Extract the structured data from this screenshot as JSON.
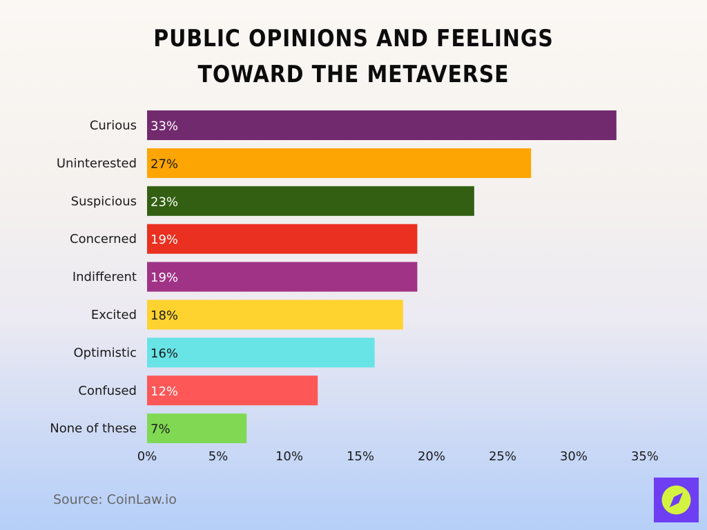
{
  "chart_data": {
    "type": "bar",
    "orientation": "horizontal",
    "title": "Public Opinions and Feelings Toward the Metaverse",
    "categories": [
      "Curious",
      "Uninterested",
      "Suspicious",
      "Concerned",
      "Indifferent",
      "Excited",
      "Optimistic",
      "Confused",
      "None of these"
    ],
    "values": [
      33,
      27,
      23,
      19,
      19,
      18,
      16,
      12,
      7
    ],
    "data_labels": [
      "33%",
      "27%",
      "23%",
      "19%",
      "19%",
      "18%",
      "16%",
      "12%",
      "7%"
    ],
    "colors": [
      "#722a6e",
      "#fda503",
      "#325f12",
      "#ea3020",
      "#a03386",
      "#fed22f",
      "#68e3e6",
      "#fd5757",
      "#80d853"
    ],
    "label_colors": [
      "#ffffff",
      "#1a1a1a",
      "#ffffff",
      "#ffffff",
      "#ffffff",
      "#1a1a1a",
      "#1a1a1a",
      "#ffffff",
      "#1a1a1a"
    ],
    "xlim": [
      0,
      35
    ],
    "xticks": [
      "0%",
      "5%",
      "10%",
      "15%",
      "20%",
      "25%",
      "30%",
      "35%"
    ],
    "grid": false,
    "xlabel": "",
    "ylabel": ""
  },
  "source": "Source: CoinLaw.io",
  "logo": {
    "icon": "compass-icon",
    "bg": "#6e3ff2",
    "fg": "#d4f340"
  }
}
